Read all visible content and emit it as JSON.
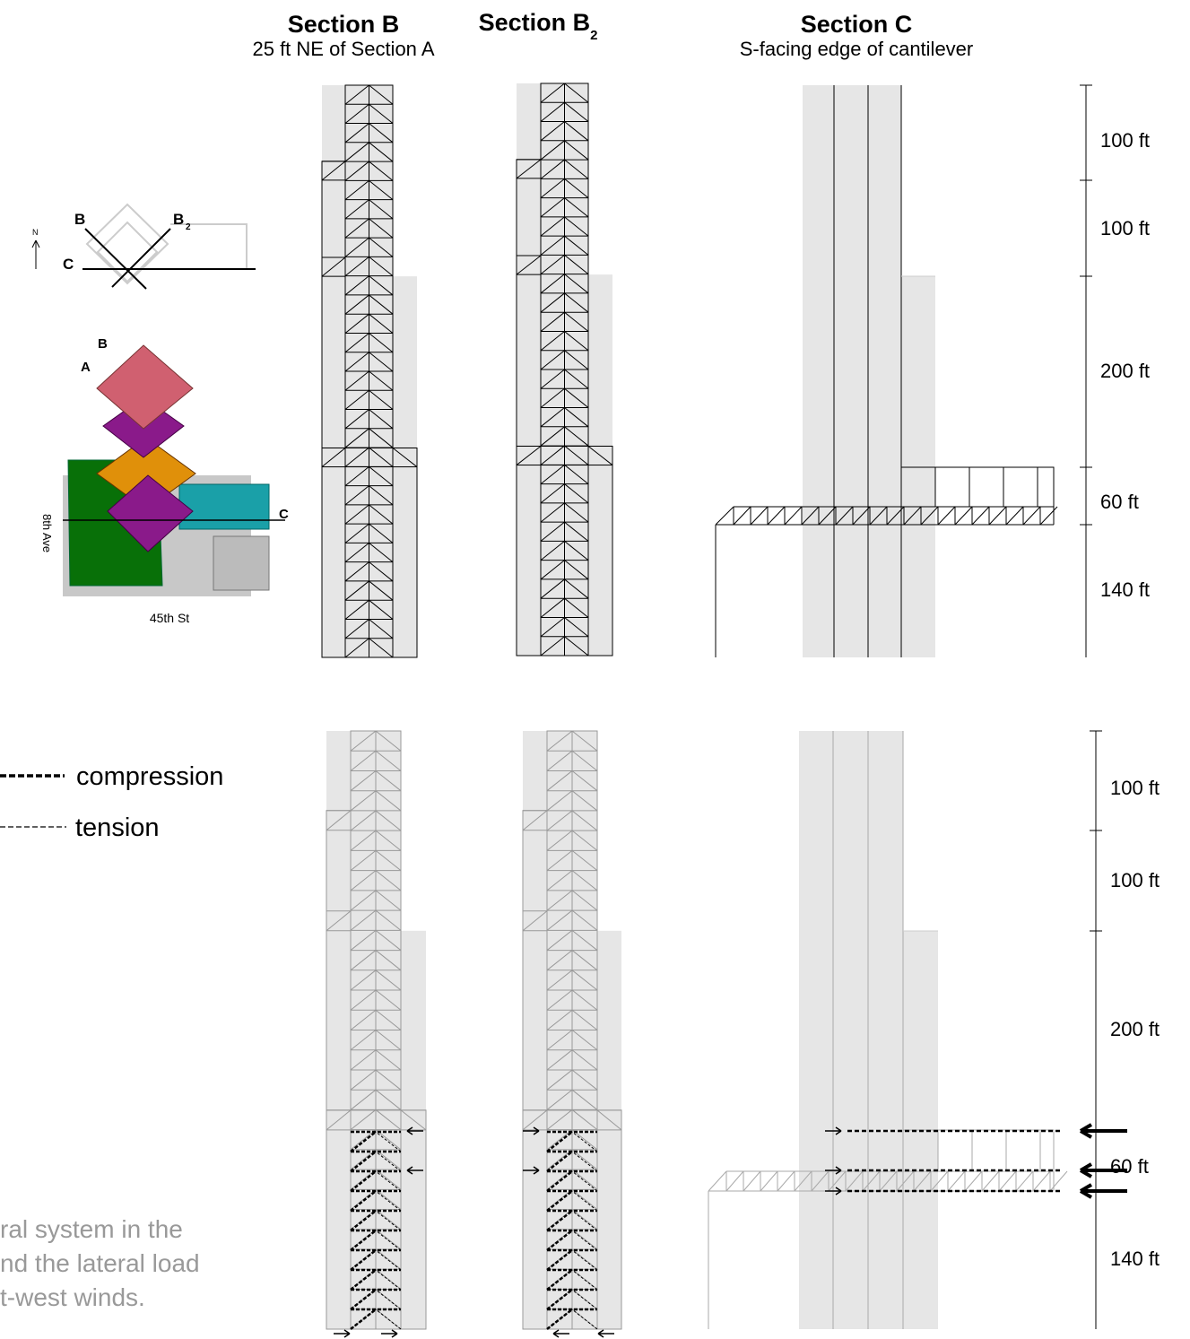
{
  "sections": [
    {
      "title": "Section B",
      "subtitle": "25 ft NE of Section A"
    },
    {
      "title": "Section B",
      "subscript": "2"
    },
    {
      "title": "Section C",
      "subtitle": "S-facing edge of cantilever"
    }
  ],
  "dimensions_top": [
    "100 ft",
    "100 ft",
    "200 ft",
    "60 ft",
    "140 ft"
  ],
  "dimensions_bottom": [
    "100 ft",
    "100 ft",
    "200 ft",
    "60 ft",
    "140 ft"
  ],
  "plan": {
    "labels": [
      "B",
      "B",
      "2",
      "C",
      "N"
    ]
  },
  "axon": {
    "labels": [
      "B",
      "A",
      "C",
      "8th Ave",
      "45th St"
    ]
  },
  "legend": [
    "compression",
    "tension"
  ],
  "caption": [
    "ral system in the",
    "nd the lateral load",
    "t-west winds."
  ]
}
